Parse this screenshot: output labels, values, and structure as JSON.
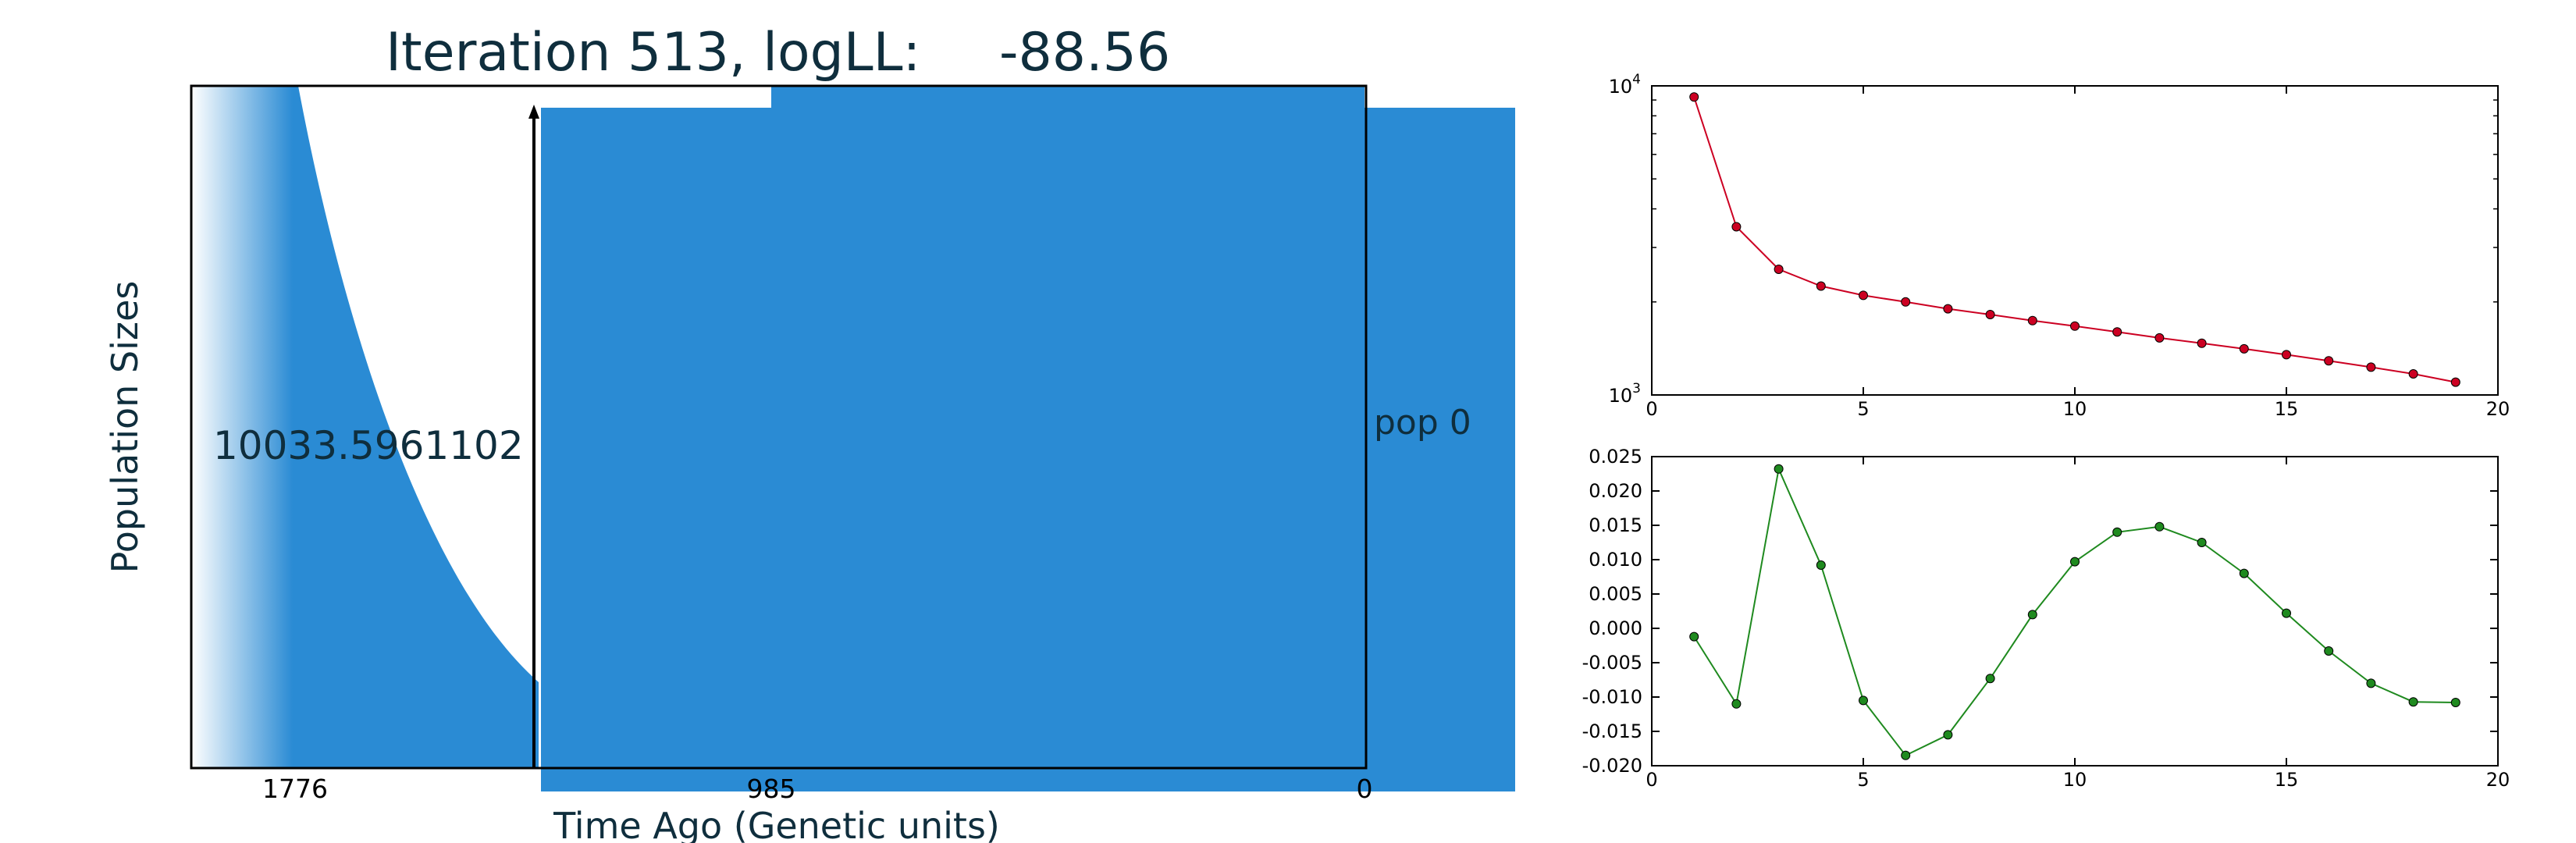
{
  "chart_data": [
    {
      "type": "area",
      "title_prefix": "Iteration 513, logLL:",
      "title_value": "-88.56",
      "xlabel": "Time Ago (Genetic units)",
      "ylabel": "Population Sizes",
      "x_ticks": [
        "1776",
        "985",
        "0"
      ],
      "y_annotation": "10033.5961102",
      "legend": "pop 0",
      "colors": {
        "fill": "#2a8bd4",
        "text": "#0f2e3d",
        "line": "#000000"
      }
    },
    {
      "type": "line",
      "yscale": "log",
      "xlim": [
        0,
        20
      ],
      "ylim": [
        1000,
        10000
      ],
      "x_ticks": [
        0,
        5,
        10,
        15,
        20
      ],
      "y_ticks": [
        {
          "base": "10",
          "exp": "3",
          "value": 1000
        },
        {
          "base": "10",
          "exp": "4",
          "value": 10000
        }
      ],
      "color": "#cc0022",
      "x": [
        1,
        2,
        3,
        4,
        5,
        6,
        7,
        8,
        9,
        10,
        11,
        12,
        13,
        14,
        15,
        16,
        17,
        18,
        19
      ],
      "y": [
        9200,
        3500,
        2550,
        2250,
        2100,
        2000,
        1900,
        1820,
        1740,
        1670,
        1600,
        1530,
        1470,
        1410,
        1350,
        1290,
        1230,
        1170,
        1100
      ]
    },
    {
      "type": "line",
      "xlim": [
        0,
        20
      ],
      "ylim": [
        -0.02,
        0.025
      ],
      "x_ticks": [
        0,
        5,
        10,
        15,
        20
      ],
      "y_ticks": [
        "0.025",
        "0.020",
        "0.015",
        "0.010",
        "0.005",
        "0.000",
        "-0.005",
        "-0.010",
        "-0.015",
        "-0.020"
      ],
      "color": "#1f8a1f",
      "x": [
        1,
        2,
        3,
        4,
        5,
        6,
        7,
        8,
        9,
        10,
        11,
        12,
        13,
        14,
        15,
        16,
        17,
        18,
        19
      ],
      "y": [
        -0.0012,
        -0.011,
        0.0232,
        0.0092,
        -0.0105,
        -0.0185,
        -0.0155,
        -0.0073,
        0.002,
        0.0097,
        0.014,
        0.0148,
        0.0125,
        0.008,
        0.0022,
        -0.0033,
        -0.008,
        -0.0107,
        -0.0108
      ]
    }
  ]
}
